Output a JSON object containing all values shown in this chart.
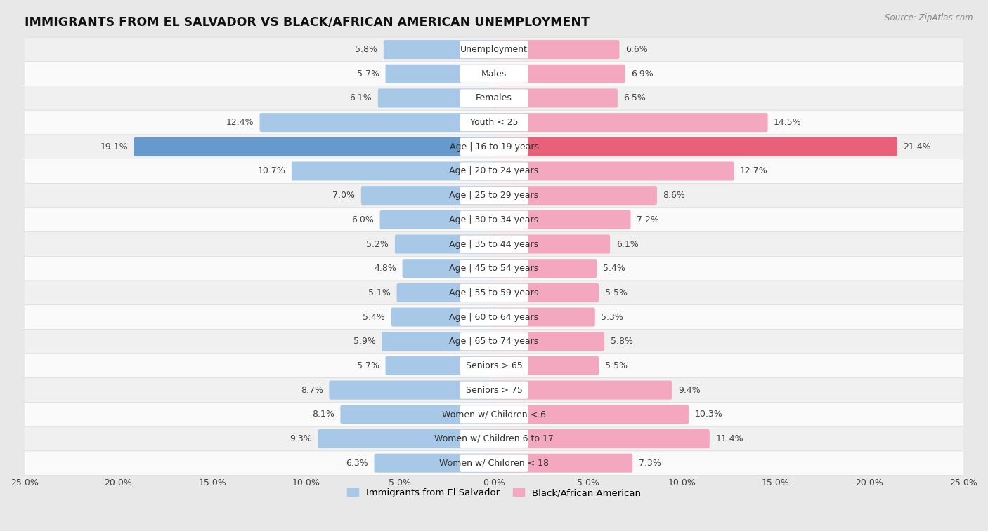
{
  "title": "IMMIGRANTS FROM EL SALVADOR VS BLACK/AFRICAN AMERICAN UNEMPLOYMENT",
  "source": "Source: ZipAtlas.com",
  "categories": [
    "Unemployment",
    "Males",
    "Females",
    "Youth < 25",
    "Age | 16 to 19 years",
    "Age | 20 to 24 years",
    "Age | 25 to 29 years",
    "Age | 30 to 34 years",
    "Age | 35 to 44 years",
    "Age | 45 to 54 years",
    "Age | 55 to 59 years",
    "Age | 60 to 64 years",
    "Age | 65 to 74 years",
    "Seniors > 65",
    "Seniors > 75",
    "Women w/ Children < 6",
    "Women w/ Children 6 to 17",
    "Women w/ Children < 18"
  ],
  "el_salvador": [
    5.8,
    5.7,
    6.1,
    12.4,
    19.1,
    10.7,
    7.0,
    6.0,
    5.2,
    4.8,
    5.1,
    5.4,
    5.9,
    5.7,
    8.7,
    8.1,
    9.3,
    6.3
  ],
  "black_american": [
    6.6,
    6.9,
    6.5,
    14.5,
    21.4,
    12.7,
    8.6,
    7.2,
    6.1,
    5.4,
    5.5,
    5.3,
    5.8,
    5.5,
    9.4,
    10.3,
    11.4,
    7.3
  ],
  "color_el_salvador": "#a8c8e8",
  "color_black_american": "#f4a8c0",
  "color_highlight_el_salvador": "#6699cc",
  "color_highlight_black_american": "#e8607a",
  "row_color_odd": "#f5f5f5",
  "row_color_even": "#e8e8e8",
  "background_color": "#e8e8e8",
  "xlim": 25.0,
  "bar_height": 0.62,
  "label_fontsize": 9.0,
  "value_fontsize": 9.0,
  "title_fontsize": 12.5,
  "highlight_row": 4
}
